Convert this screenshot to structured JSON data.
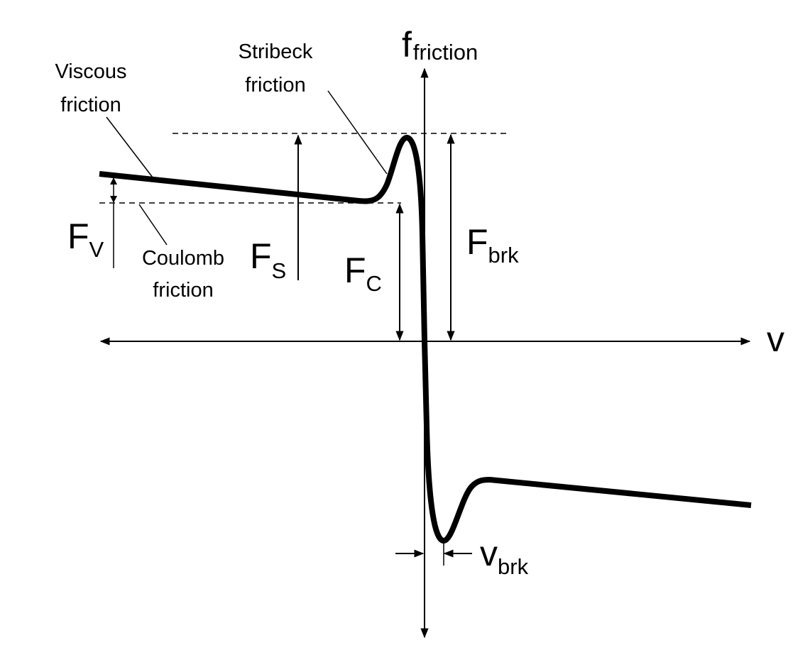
{
  "diagram": {
    "axes": {
      "y_label_main": "f",
      "y_label_sub": "friction",
      "x_label": "v"
    },
    "annotations": {
      "viscous": [
        "Viscous",
        "friction"
      ],
      "stribeck": [
        "Stribeck",
        "friction"
      ],
      "coulomb": [
        "Coulomb",
        "friction"
      ]
    },
    "quantities": {
      "fv": {
        "main": "F",
        "sub": "V"
      },
      "fs": {
        "main": "F",
        "sub": "S"
      },
      "fc": {
        "main": "F",
        "sub": "C"
      },
      "fbrk": {
        "main": "F",
        "sub": "brk"
      },
      "vbrk": {
        "main": "v",
        "sub": "brk"
      }
    },
    "colors": {
      "ink": "#000000",
      "background": "#ffffff"
    }
  }
}
